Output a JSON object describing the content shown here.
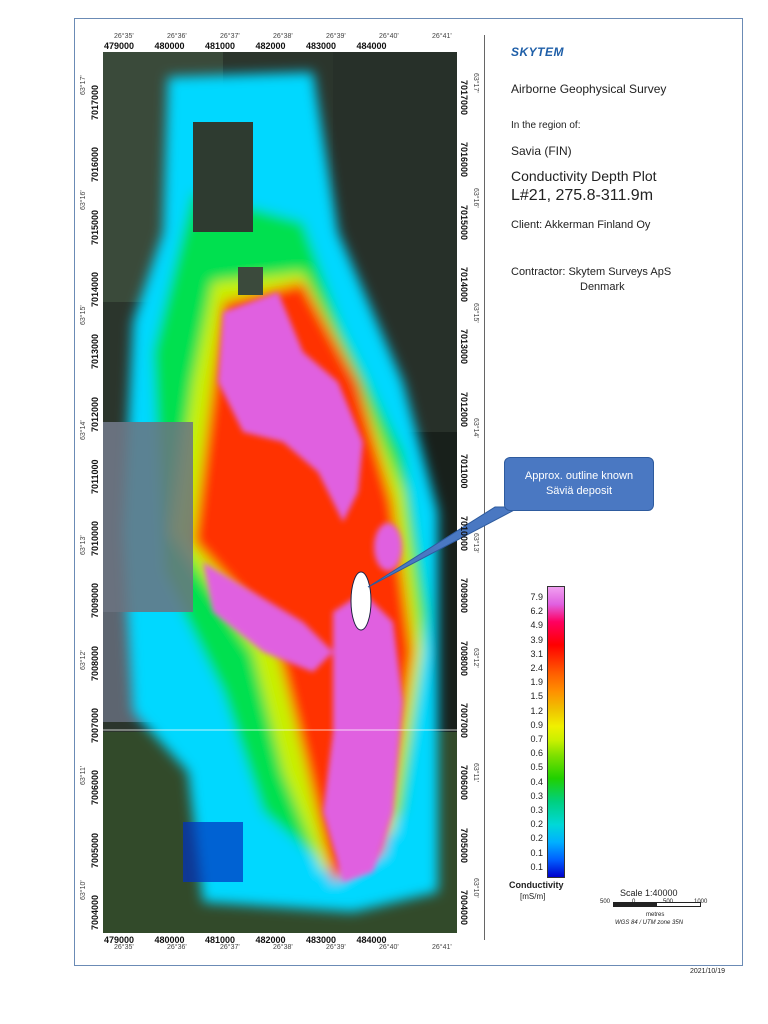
{
  "map": {
    "easting_ticks": [
      "479000",
      "480000",
      "481000",
      "482000",
      "483000",
      "484000"
    ],
    "longitude_ticks": [
      "26°35'",
      "26°36'",
      "26°37'",
      "26°38'",
      "26°39'",
      "26°40'",
      "26°41'"
    ],
    "northing_ticks": [
      "7017000",
      "7016000",
      "7015000",
      "7014000",
      "7013000",
      "7012000",
      "7011000",
      "7010000",
      "7009000",
      "7008000",
      "7007000",
      "7006000",
      "7005000",
      "7004000"
    ],
    "latitude_ticks": [
      "63°17'",
      "63°16'",
      "63°15'",
      "63°14'",
      "63°13'",
      "63°12'",
      "63°11'",
      "63°10'"
    ],
    "colors": {
      "low": "#0000cc",
      "mid_cyan": "#00c8ff",
      "mid_green": "#00e000",
      "mid_yellow": "#f0f000",
      "high_red": "#ff0000",
      "max_magenta": "#e060e0"
    }
  },
  "header": {
    "logo_text": "SKYTEM",
    "survey_title": "Airborne Geophysical Survey",
    "region_label": "In the region of:",
    "region_name": "Savia (FIN)",
    "plot_title": "Conductivity Depth Plot",
    "line_info": "L#21, 275.8-311.9m",
    "client": "Client: Akkerman Finland Oy",
    "contractor_line1": "Contractor: Skytem Surveys ApS",
    "contractor_line2": "Denmark"
  },
  "callout": {
    "line1": "Approx. outline known",
    "line2": "Säviä deposit"
  },
  "legend": {
    "values": [
      "7.9",
      "6.2",
      "4.9",
      "3.9",
      "3.1",
      "2.4",
      "1.9",
      "1.5",
      "1.2",
      "0.9",
      "0.7",
      "0.6",
      "0.5",
      "0.4",
      "0.3",
      "0.3",
      "0.2",
      "0.2",
      "0.1",
      "0.1"
    ],
    "title": "Conductivity",
    "unit": "[mS/m]"
  },
  "scale": {
    "title": "Scale 1:40000",
    "ticks": [
      "500",
      "0",
      "500",
      "1000"
    ],
    "unit": "metres",
    "projection": "WGS 84 / UTM zone 35N"
  },
  "footer": {
    "date": "2021/10/19"
  }
}
